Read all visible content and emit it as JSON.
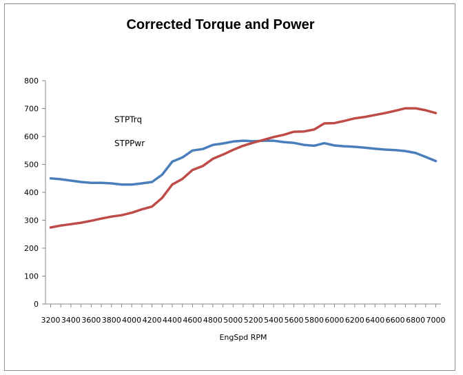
{
  "chart_data": {
    "type": "line",
    "title": "Corrected Torque and Power",
    "xlabel": "EngSpd  RPM",
    "ylabel": "",
    "ylim": [
      0,
      800
    ],
    "yticks": [
      0,
      100,
      200,
      300,
      400,
      500,
      600,
      700,
      800
    ],
    "x_tick_labels": [
      "3200",
      "3400",
      "3600",
      "3800",
      "4000",
      "4200",
      "4400",
      "4600",
      "4800",
      "5000",
      "5200",
      "5400",
      "5600",
      "5800",
      "6000",
      "6200",
      "6400",
      "6600",
      "6800",
      "7000"
    ],
    "grid": false,
    "legend": "none",
    "x": [
      3200,
      3300,
      3400,
      3500,
      3600,
      3700,
      3800,
      3900,
      4000,
      4100,
      4200,
      4300,
      4400,
      4500,
      4600,
      4700,
      4800,
      4900,
      5000,
      5100,
      5200,
      5300,
      5400,
      5500,
      5600,
      5700,
      5800,
      5900,
      6000,
      6100,
      6200,
      6300,
      6400,
      6500,
      6600,
      6700,
      6800,
      6900,
      7000
    ],
    "series": [
      {
        "name": "STPTrq",
        "color": "#4a7ebb",
        "label_value": 660,
        "values": [
          450,
          447,
          442,
          437,
          434,
          434,
          432,
          428,
          428,
          432,
          437,
          463,
          510,
          525,
          550,
          555,
          570,
          575,
          582,
          585,
          583,
          585,
          585,
          580,
          577,
          570,
          567,
          576,
          568,
          565,
          563,
          560,
          556,
          553,
          551,
          548,
          541,
          527,
          512
        ]
      },
      {
        "name": "STPPwr",
        "color": "#be4b48",
        "label_value": 575,
        "values": [
          274,
          281,
          286,
          291,
          298,
          306,
          313,
          318,
          327,
          339,
          349,
          380,
          428,
          448,
          480,
          494,
          520,
          535,
          552,
          567,
          578,
          588,
          598,
          606,
          617,
          618,
          625,
          647,
          648,
          656,
          665,
          670,
          677,
          684,
          692,
          701,
          701,
          694,
          684
        ]
      }
    ]
  }
}
